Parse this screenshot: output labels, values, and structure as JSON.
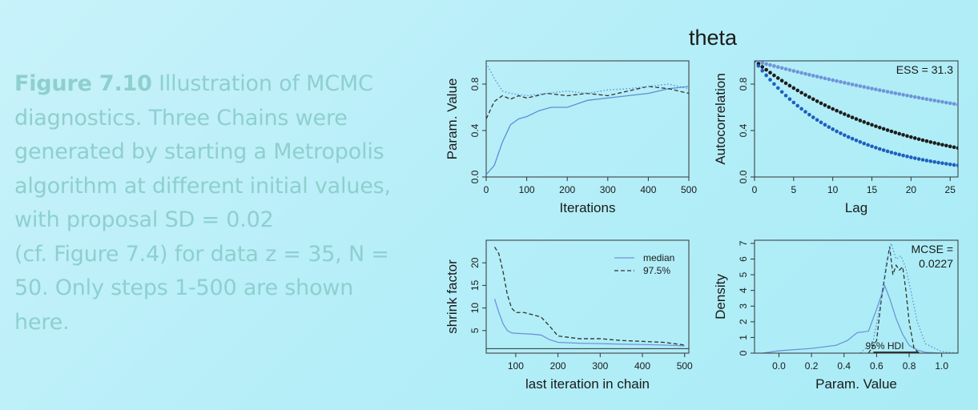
{
  "caption": {
    "figure_number": "Figure 7.10",
    "lines": [
      "Illustration of MCMC",
      "diagnostics. Three Chains were",
      "generated by starting a Metropolis",
      "algorithm at different initial values,",
      "with proposal SD = 0.02",
      "(cf. Figure 7.4) for data z = 35, N =",
      "50. Only steps 1-500 are shown",
      "here."
    ]
  },
  "chart_data": [
    {
      "type": "line",
      "panel": "trace",
      "title": "theta",
      "xlabel": "Iterations",
      "ylabel": "Param. Value",
      "xlim": [
        0,
        500
      ],
      "ylim": [
        0,
        1.0
      ],
      "xticks": [
        "0",
        "100",
        "200",
        "300",
        "400",
        "500"
      ],
      "yticks": [
        "0.0",
        "0.4",
        "0.8"
      ],
      "series": [
        {
          "color": "#5b8fd6",
          "style": "solid",
          "x": [
            0,
            20,
            40,
            60,
            80,
            100,
            130,
            160,
            200,
            250,
            300,
            350,
            400,
            450,
            500
          ],
          "y": [
            0.02,
            0.1,
            0.3,
            0.45,
            0.5,
            0.52,
            0.57,
            0.6,
            0.6,
            0.66,
            0.68,
            0.7,
            0.72,
            0.76,
            0.78
          ]
        },
        {
          "color": "#333333",
          "style": "dashed",
          "x": [
            0,
            20,
            40,
            60,
            80,
            100,
            150,
            200,
            250,
            300,
            350,
            400,
            450,
            500
          ],
          "y": [
            0.5,
            0.65,
            0.7,
            0.67,
            0.7,
            0.68,
            0.72,
            0.7,
            0.72,
            0.7,
            0.74,
            0.78,
            0.76,
            0.72
          ]
        },
        {
          "color": "#5b8fd6",
          "style": "dotted",
          "x": [
            0,
            20,
            40,
            60,
            100,
            150,
            200,
            250,
            300,
            350,
            400,
            450,
            500
          ],
          "y": [
            0.98,
            0.85,
            0.74,
            0.72,
            0.7,
            0.72,
            0.74,
            0.72,
            0.75,
            0.76,
            0.78,
            0.8,
            0.76
          ]
        }
      ]
    },
    {
      "type": "scatter",
      "panel": "acf",
      "xlabel": "Lag",
      "ylabel": "Autocorrelation",
      "annotation": "ESS = 31.3",
      "xlim": [
        0,
        26
      ],
      "ylim": [
        0,
        1.0
      ],
      "xticks": [
        "0",
        "5",
        "10",
        "15",
        "20",
        "25"
      ],
      "yticks": [
        "0.0",
        "0.4",
        "0.8"
      ],
      "series": [
        {
          "color": "#6f94d8",
          "decay": 0.982
        },
        {
          "color": "#1c1c1c",
          "decay": 0.948
        },
        {
          "color": "#1f5fbf",
          "decay": 0.915
        }
      ]
    },
    {
      "type": "line",
      "panel": "shrink",
      "xlabel": "last iteration in chain",
      "ylabel": "shrink factor",
      "xlim": [
        30,
        510
      ],
      "ylim": [
        0,
        25
      ],
      "xticks": [
        "100",
        "200",
        "300",
        "400",
        "500"
      ],
      "yticks": [
        "5",
        "10",
        "15",
        "20"
      ],
      "legend": [
        "median",
        "97.5%"
      ],
      "series": [
        {
          "name": "median",
          "color": "#6f94d8",
          "style": "solid",
          "x": [
            50,
            60,
            70,
            80,
            90,
            100,
            120,
            140,
            160,
            180,
            200,
            250,
            300,
            350,
            400,
            450,
            500
          ],
          "y": [
            12,
            9,
            6.5,
            5,
            4.5,
            4.4,
            4.3,
            4.2,
            4,
            3,
            2.4,
            2.2,
            2.1,
            2.0,
            1.9,
            1.8,
            1.6
          ]
        },
        {
          "name": "97.5%",
          "color": "#333333",
          "style": "dashed",
          "x": [
            50,
            60,
            70,
            80,
            90,
            100,
            120,
            140,
            160,
            180,
            200,
            250,
            300,
            350,
            400,
            450,
            500
          ],
          "y": [
            23.5,
            22,
            18,
            13,
            10,
            9,
            9,
            8.5,
            8,
            6,
            3.8,
            3.2,
            3.2,
            2.8,
            2.6,
            2.4,
            1.8
          ]
        }
      ]
    },
    {
      "type": "line",
      "panel": "density",
      "xlabel": "Param. Value",
      "ylabel": "Density",
      "annotation": [
        "MCSE =",
        "0.0227"
      ],
      "hdi_label": "95% HDI",
      "xlim": [
        -0.15,
        1.1
      ],
      "ylim": [
        0,
        7.2
      ],
      "xticks": [
        "0.0",
        "0.2",
        "0.4",
        "0.6",
        "0.8",
        "1.0"
      ],
      "yticks": [
        "0",
        "1",
        "2",
        "3",
        "4",
        "5",
        "6",
        "7"
      ],
      "series": [
        {
          "color": "#6f94d8",
          "style": "solid",
          "x": [
            -0.1,
            0.0,
            0.2,
            0.35,
            0.42,
            0.48,
            0.55,
            0.6,
            0.65,
            0.68,
            0.72,
            0.76,
            0.8,
            0.85,
            0.9,
            1.0
          ],
          "y": [
            0.0,
            0.15,
            0.3,
            0.5,
            0.8,
            1.3,
            1.4,
            2.8,
            4.3,
            3.5,
            2.2,
            1.2,
            0.5,
            0.2,
            0.05,
            0.0
          ]
        },
        {
          "color": "#333333",
          "style": "dashed",
          "x": [
            0.55,
            0.6,
            0.63,
            0.66,
            0.68,
            0.7,
            0.72,
            0.74,
            0.76,
            0.78,
            0.8,
            0.83,
            0.86
          ],
          "y": [
            0.0,
            0.8,
            3.5,
            5.5,
            6.8,
            5.0,
            5.6,
            5.3,
            5.5,
            4.0,
            2.0,
            0.3,
            0.0
          ]
        },
        {
          "color": "#5b8fd6",
          "style": "dotted",
          "x": [
            0.5,
            0.58,
            0.62,
            0.66,
            0.69,
            0.72,
            0.75,
            0.78,
            0.81,
            0.85,
            0.9,
            1.0,
            1.1
          ],
          "y": [
            0.0,
            0.8,
            3.0,
            5.8,
            7.0,
            6.0,
            6.2,
            5.4,
            4.0,
            2.0,
            0.6,
            0.1,
            0.0
          ]
        }
      ],
      "hdi": [
        0.58,
        0.86
      ]
    }
  ]
}
